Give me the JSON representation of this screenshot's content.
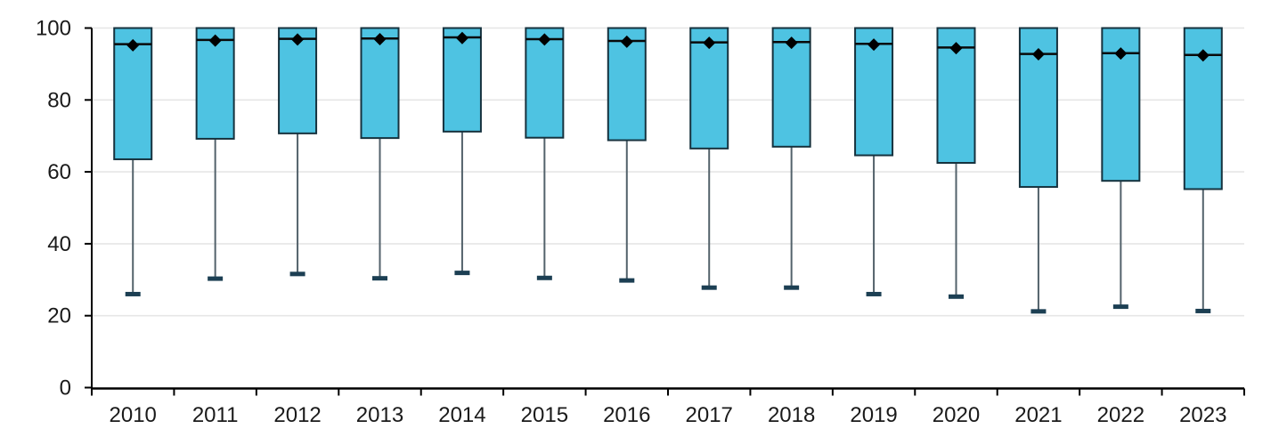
{
  "chart_data": {
    "type": "box",
    "title": "",
    "xlabel": "",
    "ylabel": "",
    "ylim": [
      0,
      100
    ],
    "yticks": [
      0,
      20,
      40,
      60,
      80,
      100
    ],
    "grid": "horizontal",
    "legend": "none",
    "marker": "mean-diamond",
    "categories": [
      "2010",
      "2011",
      "2012",
      "2013",
      "2014",
      "2015",
      "2016",
      "2017",
      "2018",
      "2019",
      "2020",
      "2021",
      "2022",
      "2023"
    ],
    "stats": [
      {
        "year": "2010",
        "min": 26.0,
        "q1": 63.5,
        "median": 95.5,
        "mean": 95.2,
        "q3": 100,
        "max": 100
      },
      {
        "year": "2011",
        "min": 30.3,
        "q1": 69.2,
        "median": 96.7,
        "mean": 96.5,
        "q3": 100,
        "max": 100
      },
      {
        "year": "2012",
        "min": 31.6,
        "q1": 70.7,
        "median": 97.0,
        "mean": 96.8,
        "q3": 100,
        "max": 100
      },
      {
        "year": "2013",
        "min": 30.4,
        "q1": 69.4,
        "median": 97.1,
        "mean": 96.9,
        "q3": 100,
        "max": 100
      },
      {
        "year": "2014",
        "min": 31.9,
        "q1": 71.2,
        "median": 97.4,
        "mean": 97.2,
        "q3": 100,
        "max": 100
      },
      {
        "year": "2015",
        "min": 30.5,
        "q1": 69.5,
        "median": 96.9,
        "mean": 96.8,
        "q3": 100,
        "max": 100
      },
      {
        "year": "2016",
        "min": 29.8,
        "q1": 68.8,
        "median": 96.4,
        "mean": 96.2,
        "q3": 100,
        "max": 100
      },
      {
        "year": "2017",
        "min": 27.8,
        "q1": 66.5,
        "median": 96.0,
        "mean": 95.9,
        "q3": 100,
        "max": 100
      },
      {
        "year": "2018",
        "min": 27.8,
        "q1": 67.0,
        "median": 96.1,
        "mean": 95.9,
        "q3": 100,
        "max": 100
      },
      {
        "year": "2019",
        "min": 26.0,
        "q1": 64.6,
        "median": 95.6,
        "mean": 95.4,
        "q3": 100,
        "max": 100
      },
      {
        "year": "2020",
        "min": 25.3,
        "q1": 62.5,
        "median": 94.6,
        "mean": 94.4,
        "q3": 100,
        "max": 100
      },
      {
        "year": "2021",
        "min": 21.2,
        "q1": 55.8,
        "median": 92.8,
        "mean": 92.7,
        "q3": 100,
        "max": 100
      },
      {
        "year": "2022",
        "min": 22.5,
        "q1": 57.5,
        "median": 93.0,
        "mean": 92.9,
        "q3": 100,
        "max": 100
      },
      {
        "year": "2023",
        "min": 21.3,
        "q1": 55.2,
        "median": 92.5,
        "mean": 92.4,
        "q3": 100,
        "max": 100
      }
    ],
    "colors": {
      "box_fill": "#4ec3e2",
      "box_border": "#16323e",
      "median_line": "#0a0a0a",
      "mean_marker": "#000000",
      "whisker_stem": "#53626b",
      "whisker_cap": "#1c3f53",
      "gridline": "#e6e6e6",
      "axis": "#000000",
      "tick_label": "#1a1a1a",
      "background": "#ffffff"
    }
  }
}
